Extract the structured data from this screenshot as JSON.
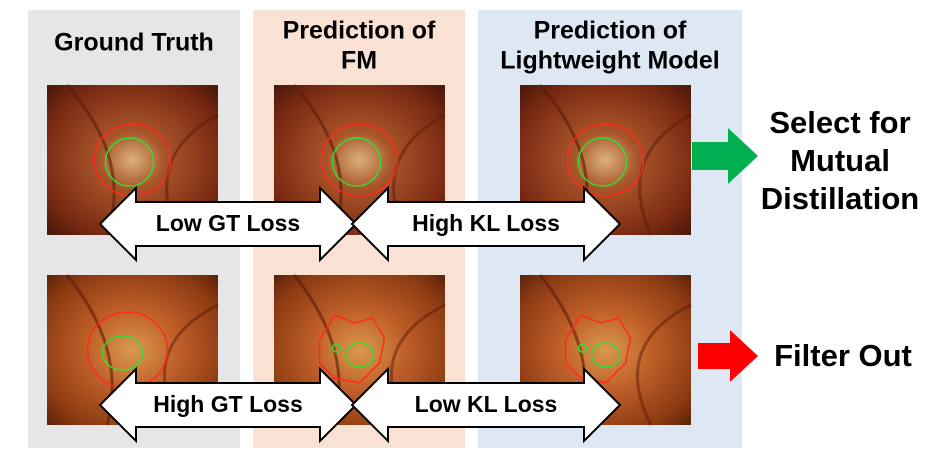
{
  "columns": [
    {
      "title_lines": [
        "Ground Truth"
      ]
    },
    {
      "title_lines": [
        "Prediction of",
        "FM"
      ]
    },
    {
      "title_lines": [
        "Prediction of",
        "Lightweight Model"
      ]
    }
  ],
  "rows": [
    {
      "left_label": "Low GT Loss",
      "right_label": "High KL Loss",
      "outcome_lines": [
        "Select for",
        "Mutual",
        "Distillation"
      ]
    },
    {
      "left_label": "High GT Loss",
      "right_label": "Low KL Loss",
      "outcome_lines": [
        "Filter Out"
      ]
    }
  ]
}
